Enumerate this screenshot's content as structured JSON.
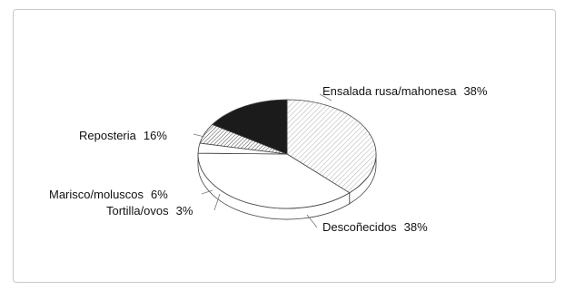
{
  "chart_data": {
    "type": "pie",
    "style": "3d",
    "slices": [
      {
        "label": "Ensalada rusa/mahonesa",
        "pct_label": "38%",
        "value": 38,
        "fill": "hatch-light"
      },
      {
        "label": "Descoñecidos",
        "pct_label": "38%",
        "value": 38,
        "fill": "white"
      },
      {
        "label": "Tortilla/ovos",
        "pct_label": "3%",
        "value": 3,
        "fill": "white"
      },
      {
        "label": "Marisco/moluscos",
        "pct_label": "6%",
        "value": 6,
        "fill": "hatch-dense"
      },
      {
        "label": "Reposteria",
        "pct_label": "16%",
        "value": 16,
        "fill": "black"
      }
    ]
  }
}
